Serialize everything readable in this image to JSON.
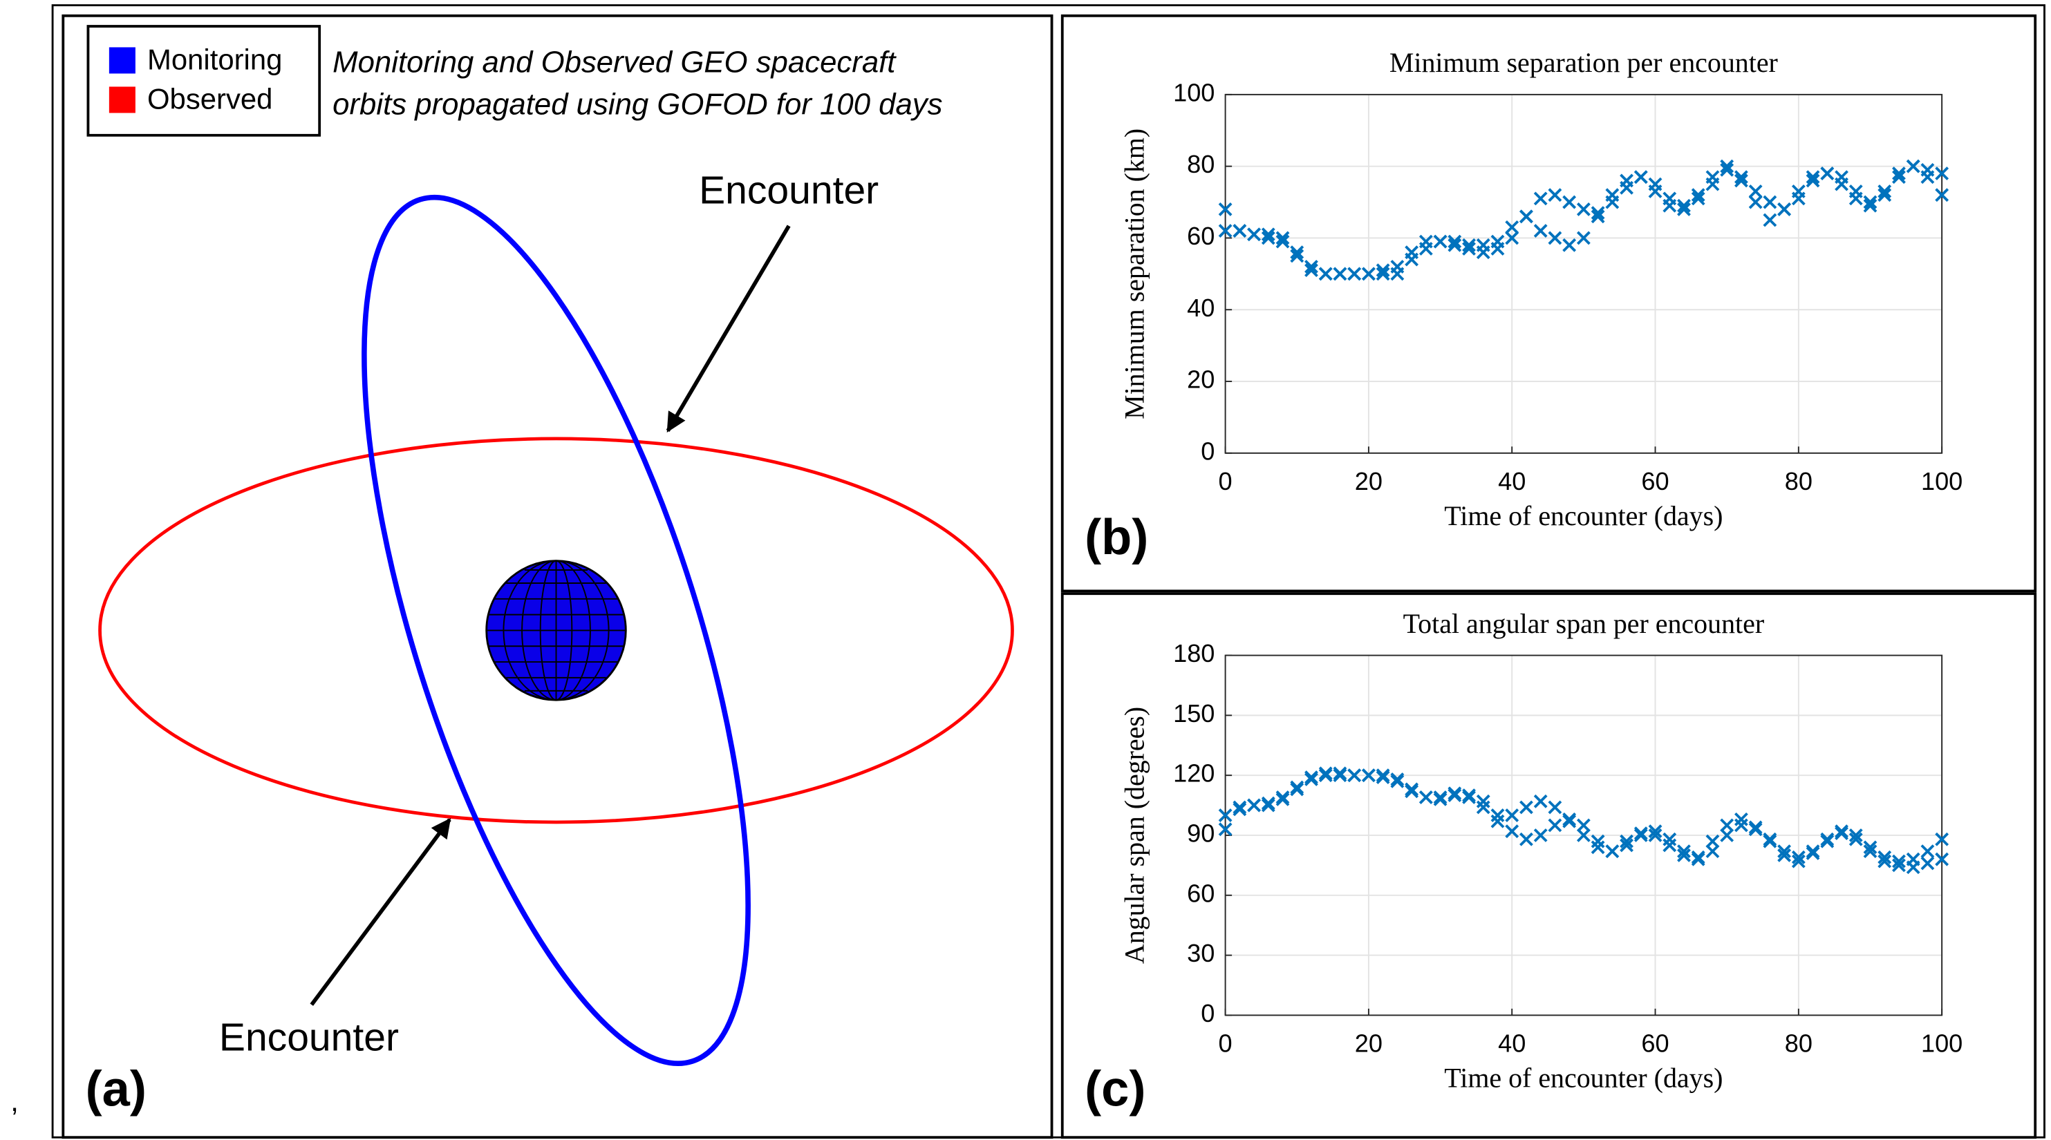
{
  "panel_a": {
    "legend": [
      {
        "name": "Monitoring",
        "color": "#0000ff"
      },
      {
        "name": "Observed",
        "color": "#ff0000"
      }
    ],
    "caption": [
      "Monitoring and Observed GEO spacecraft",
      "orbits propagated using GOFOD for 100 days"
    ],
    "annotations": [
      "Encounter",
      "Encounter"
    ],
    "panel_label": "(a)",
    "margin_text": ","
  },
  "chart_data": [
    {
      "type": "scatter",
      "title": "Minimum separation per encounter",
      "xlabel": "Time of encounter (days)",
      "ylabel": "Minimum separation (km)",
      "panel_label": "(b)",
      "x": [
        0,
        2,
        4,
        6,
        8,
        10,
        12,
        14,
        16,
        18,
        20,
        22,
        24,
        26,
        28,
        30,
        32,
        34,
        36,
        38,
        40,
        42,
        44,
        46,
        48,
        50,
        52,
        54,
        56,
        58,
        60,
        62,
        64,
        66,
        68,
        70,
        72,
        74,
        76,
        78,
        80,
        82,
        84,
        86,
        88,
        90,
        92,
        94,
        96,
        98,
        100
      ],
      "series": [
        {
          "color": "#0072bd",
          "values": [
            68,
            62,
            61,
            61,
            60,
            56,
            52,
            50,
            50,
            50,
            50,
            50,
            50,
            54,
            57,
            59,
            59,
            58,
            58,
            57,
            60,
            66,
            71,
            72,
            70,
            68,
            67,
            70,
            74,
            77,
            75,
            71,
            69,
            71,
            75,
            79,
            77,
            73,
            70,
            68,
            71,
            76,
            78,
            77,
            73,
            70,
            72,
            77,
            80,
            79,
            78
          ]
        },
        {
          "color": "#0072bd",
          "values": [
            62,
            62,
            61,
            60,
            59,
            55,
            51,
            50,
            50,
            50,
            50,
            51,
            52,
            56,
            59,
            59,
            58,
            57,
            56,
            59,
            63,
            66,
            62,
            60,
            58,
            60,
            66,
            72,
            76,
            77,
            73,
            69,
            68,
            72,
            77,
            80,
            76,
            70,
            65,
            68,
            73,
            77,
            78,
            75,
            71,
            69,
            73,
            78,
            80,
            77,
            72
          ]
        }
      ],
      "xlim": [
        0,
        100
      ],
      "xticks": [
        0,
        20,
        40,
        60,
        80,
        100
      ],
      "ylim": [
        0,
        100
      ],
      "yticks": [
        0,
        20,
        40,
        60,
        80,
        100
      ],
      "grid": true
    },
    {
      "type": "scatter",
      "title": "Total angular span per encounter",
      "xlabel": "Time of encounter (days)",
      "ylabel": "Angular span (degrees)",
      "panel_label": "(c)",
      "x": [
        0,
        2,
        4,
        6,
        8,
        10,
        12,
        14,
        16,
        18,
        20,
        22,
        24,
        26,
        28,
        30,
        32,
        34,
        36,
        38,
        40,
        42,
        44,
        46,
        48,
        50,
        52,
        54,
        56,
        58,
        60,
        62,
        64,
        66,
        68,
        70,
        72,
        74,
        76,
        78,
        80,
        82,
        84,
        86,
        88,
        90,
        92,
        94,
        96,
        98,
        100
      ],
      "series": [
        {
          "color": "#0072bd",
          "values": [
            93,
            103,
            105,
            106,
            108,
            113,
            118,
            120,
            121,
            120,
            120,
            120,
            118,
            113,
            109,
            108,
            110,
            110,
            107,
            100,
            92,
            88,
            90,
            95,
            98,
            95,
            87,
            82,
            85,
            90,
            92,
            88,
            82,
            78,
            82,
            90,
            95,
            93,
            88,
            82,
            79,
            82,
            88,
            92,
            88,
            82,
            77,
            75,
            78,
            82,
            88
          ]
        },
        {
          "color": "#0072bd",
          "values": [
            100,
            104,
            105,
            105,
            109,
            114,
            119,
            121,
            120,
            120,
            120,
            119,
            117,
            112,
            109,
            109,
            111,
            109,
            104,
            97,
            100,
            104,
            107,
            104,
            97,
            90,
            84,
            82,
            87,
            91,
            90,
            85,
            80,
            79,
            87,
            95,
            98,
            94,
            87,
            80,
            77,
            81,
            87,
            91,
            90,
            84,
            79,
            77,
            74,
            76,
            78
          ]
        }
      ],
      "xlim": [
        0,
        100
      ],
      "xticks": [
        0,
        20,
        40,
        60,
        80,
        100
      ],
      "ylim": [
        0,
        180
      ],
      "yticks": [
        0,
        30,
        60,
        90,
        120,
        150,
        180
      ],
      "grid": true
    }
  ]
}
